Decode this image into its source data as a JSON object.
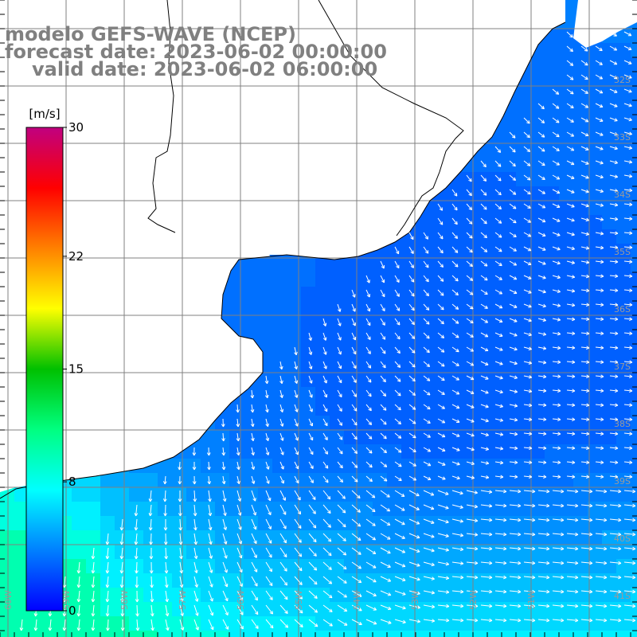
{
  "title": {
    "model": "modelo GEFS-WAVE (NCEP)",
    "forecast_date": "forecast date: 2023-06-02 00:00:00",
    "valid_date": "valid date: 2023-06-02 06:00:00"
  },
  "colorbar": {
    "unit": "[m/s]",
    "min": 0,
    "max": 30,
    "ticks": [
      {
        "value": 30,
        "label": "30"
      },
      {
        "value": 22,
        "label": "22"
      },
      {
        "value": 15,
        "label": "15"
      },
      {
        "value": 8,
        "label": "8"
      },
      {
        "value": 0,
        "label": "0"
      }
    ],
    "colors": [
      "#0000ff",
      "#0080ff",
      "#00ffff",
      "#00ff80",
      "#00c000",
      "#ffff00",
      "#ff8000",
      "#ff0000",
      "#c00080"
    ]
  },
  "map": {
    "lat_labels": [
      "32S",
      "33S",
      "34S",
      "35S",
      "36S",
      "37S",
      "38S",
      "39S",
      "40S",
      "41S"
    ],
    "lon_labels": [
      "60W",
      "59W",
      "58W",
      "57W",
      "56W",
      "55W",
      "54W",
      "53W",
      "52W",
      "51W"
    ],
    "land_color": "#ffffff",
    "grid_color": "#808080",
    "coast_color": "#000000",
    "arrow_color": "#ffffff"
  }
}
